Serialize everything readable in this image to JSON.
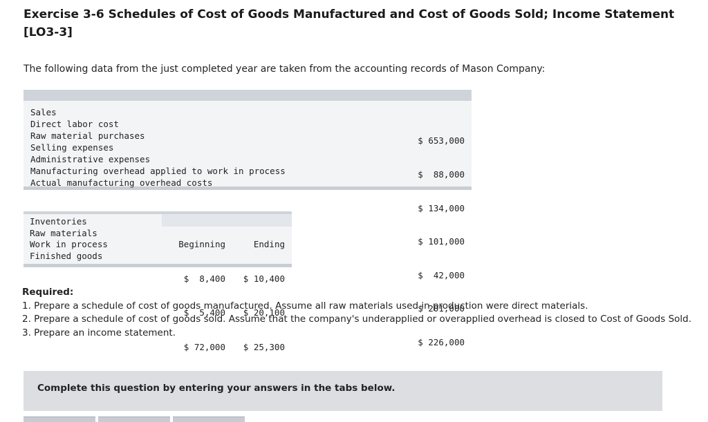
{
  "title": "Exercise 3-6 Schedules of Cost of Goods Manufactured and Cost of Goods Sold; Income Statement [LO3-3]",
  "intro": "The following data from the just completed year are taken from the accounting records of Mason Company:",
  "table1": {
    "rows": [
      {
        "label": "Sales",
        "value": "$ 653,000"
      },
      {
        "label": "Direct labor cost",
        "value": "$  88,000"
      },
      {
        "label": "Raw material purchases",
        "value": "$ 134,000"
      },
      {
        "label": "Selling expenses",
        "value": "$ 101,000"
      },
      {
        "label": "Administrative expenses",
        "value": "$  42,000"
      },
      {
        "label": "Manufacturing overhead applied to work in process",
        "value": "$ 201,000"
      },
      {
        "label": "Actual manufacturing overhead costs",
        "value": "$ 226,000"
      }
    ]
  },
  "table2": {
    "headers": [
      "Inventories",
      "Beginning",
      "Ending"
    ],
    "rows": [
      {
        "item": "Raw materials",
        "beginning": "$  8,400",
        "ending": "$ 10,400"
      },
      {
        "item": "Work in process",
        "beginning": "$  5,400",
        "ending": "$ 20,100"
      },
      {
        "item": "Finished goods",
        "beginning": "$ 72,000",
        "ending": "$ 25,300"
      }
    ]
  },
  "required": {
    "heading": "Required:",
    "items": [
      "1. Prepare a schedule of cost of goods manufactured. Assume all raw materials used in production were direct materials.",
      "2. Prepare a schedule of cost of goods sold. Assume that the company's underapplied or overapplied overhead is closed to Cost of Goods Sold.",
      "3. Prepare an income statement."
    ]
  },
  "banner": "Complete this question by entering your answers in the tabs below."
}
